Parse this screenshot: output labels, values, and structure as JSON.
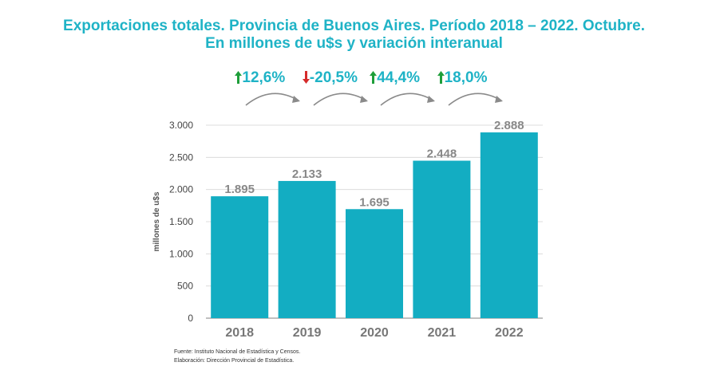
{
  "title_line1": "Exportaciones totales. Provincia de Buenos Aires. Período 2018 – 2022. Octubre.",
  "title_line2": "En millones de u$s y variación interanual",
  "variations": [
    {
      "label": "12,6%",
      "direction": "up",
      "arrow_color": "#1e9e3a"
    },
    {
      "label": "-20,5%",
      "direction": "down",
      "arrow_color": "#d52b2b"
    },
    {
      "label": "44,4%",
      "direction": "up",
      "arrow_color": "#1e9e3a"
    },
    {
      "label": "18,0%",
      "direction": "up",
      "arrow_color": "#1e9e3a"
    }
  ],
  "chart_data": {
    "type": "bar",
    "categories": [
      "2018",
      "2019",
      "2020",
      "2021",
      "2022"
    ],
    "values": [
      1895,
      2133,
      1695,
      2448,
      2888
    ],
    "value_labels": [
      "1.895",
      "2.133",
      "1.695",
      "2.448",
      "2.888"
    ],
    "ylabel": "millones de u$s",
    "ylim": [
      0,
      3000
    ],
    "yticks": [
      0,
      500,
      1000,
      1500,
      2000,
      2500,
      3000
    ],
    "ytick_labels": [
      "0",
      "500",
      "1.000",
      "1.500",
      "2.000",
      "2.500",
      "3.000"
    ],
    "grid": true,
    "bar_color": "#13adc2"
  },
  "footer": {
    "source": "Fuente: Instituto Nacional de Estadística y Censos.",
    "elaboration": "Elaboración: Dirección Provincial de Estadística."
  }
}
